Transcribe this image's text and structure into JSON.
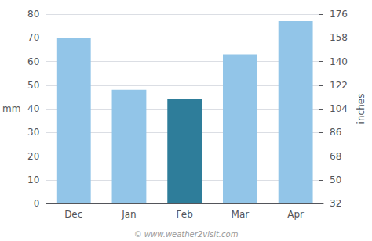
{
  "chart_data": {
    "type": "bar",
    "categories": [
      "Dec",
      "Jan",
      "Feb",
      "Mar",
      "Apr"
    ],
    "values": [
      70,
      48,
      44,
      63,
      77
    ],
    "colors": [
      "#92C5E8",
      "#92C5E8",
      "#2E7D9A",
      "#92C5E8",
      "#92C5E8"
    ],
    "ylabel": "mm",
    "y2label": "inches",
    "ylim": [
      0,
      80
    ],
    "yticks": [
      0,
      10,
      20,
      30,
      40,
      50,
      60,
      70,
      80
    ],
    "y2lim": [
      32,
      176
    ],
    "y2ticks": [
      32,
      50,
      68,
      86,
      104,
      122,
      140,
      158,
      176
    ],
    "grid": true,
    "annotation": "© www.weather2visit.com"
  }
}
